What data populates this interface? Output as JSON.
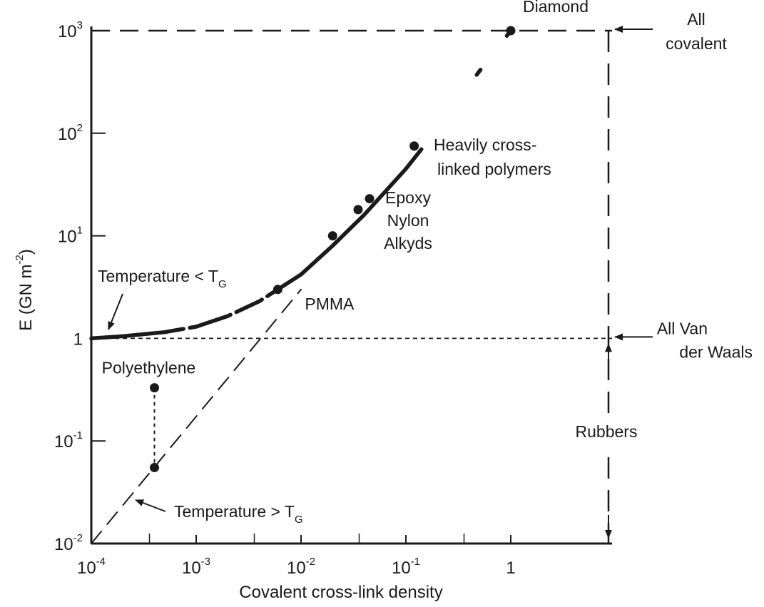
{
  "chart_data": {
    "type": "line",
    "x_scale": "log",
    "y_scale": "log",
    "xlabel": "Covalent cross-link density",
    "ylabel": "E (GN m",
    "ylabel_sup": "-2",
    "xlim": [
      0.0001,
      1
    ],
    "ylim": [
      0.01,
      1000
    ],
    "x_ticks": [
      {
        "value": 0.0001,
        "base": "10",
        "exp": "-4"
      },
      {
        "value": 0.001,
        "base": "10",
        "exp": "-3"
      },
      {
        "value": 0.01,
        "base": "10",
        "exp": "-2"
      },
      {
        "value": 0.1,
        "base": "10",
        "exp": "-1"
      },
      {
        "value": 1,
        "base": "1",
        "exp": ""
      }
    ],
    "y_ticks": [
      {
        "value": 0.01,
        "base": "10",
        "exp": "-2"
      },
      {
        "value": 0.1,
        "base": "10",
        "exp": "-1"
      },
      {
        "value": 1,
        "base": "1",
        "exp": ""
      },
      {
        "value": 10,
        "base": "10",
        "exp": "1"
      },
      {
        "value": 100,
        "base": "10",
        "exp": "2"
      },
      {
        "value": 1000,
        "base": "10",
        "exp": "3"
      }
    ],
    "series": [
      {
        "key": "below_tg",
        "style": "solid-thick",
        "x": [
          0.0001,
          0.0002,
          0.0005,
          0.001,
          0.002,
          0.004,
          0.006,
          0.01,
          0.02,
          0.04,
          0.1,
          0.2,
          0.5,
          1.0
        ],
        "y": [
          1.0,
          1.05,
          1.15,
          1.3,
          1.65,
          2.3,
          3.0,
          4.2,
          8.0,
          16.0,
          45.0,
          110.0,
          400.0,
          1000.0
        ]
      },
      {
        "key": "above_tg",
        "style": "dashed",
        "x": [
          0.0001,
          0.01
        ],
        "y": [
          0.01,
          3.0
        ]
      }
    ],
    "points": [
      {
        "x": 0.0004,
        "y": 0.33,
        "label": "Polyethylene"
      },
      {
        "x": 0.0004,
        "y": 0.055,
        "label": ""
      },
      {
        "x": 0.006,
        "y": 3.0,
        "label": "PMMA"
      },
      {
        "x": 0.02,
        "y": 10.0,
        "label": ""
      },
      {
        "x": 0.035,
        "y": 18.0,
        "label": ""
      },
      {
        "x": 0.045,
        "y": 23.0,
        "label": ""
      },
      {
        "x": 0.12,
        "y": 75.0,
        "label": ""
      },
      {
        "x": 1.0,
        "y": 1000.0,
        "label": "Diamond"
      }
    ],
    "reference_lines": [
      {
        "orientation": "horizontal",
        "y": 1000,
        "label": [
          "All",
          "covalent"
        ]
      },
      {
        "orientation": "horizontal",
        "y": 1,
        "label": [
          "All Van",
          "der Waals"
        ]
      }
    ],
    "region": {
      "label": "Rubbers"
    },
    "annotations": [
      {
        "key": "heavily",
        "lines": [
          "Heavily cross-",
          "linked polymers"
        ]
      },
      {
        "key": "epoxy",
        "lines": [
          "Epoxy",
          "Nylon",
          "Alkyds"
        ]
      },
      {
        "key": "temp_lt",
        "text": "Temperature < T",
        "subscript": "G"
      },
      {
        "key": "temp_gt",
        "text": "Temperature > T",
        "subscript": "G"
      }
    ],
    "grid": false,
    "legend": "none"
  }
}
